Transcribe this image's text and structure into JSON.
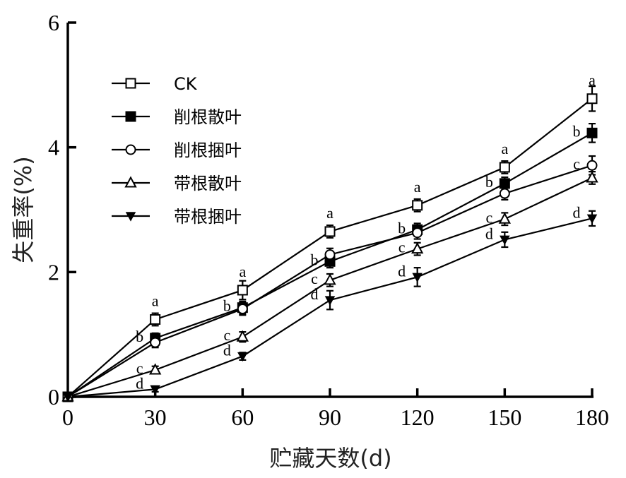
{
  "chart_data": {
    "type": "line",
    "xlabel": "贮藏天数(d)",
    "ylabel": "失重率(%)",
    "xlim": [
      0,
      180
    ],
    "ylim": [
      0,
      6
    ],
    "x": [
      0,
      30,
      60,
      90,
      120,
      150,
      180
    ],
    "x_tick_labels": [
      "0",
      "30",
      "60",
      "90",
      "120",
      "150",
      "180"
    ],
    "y_ticks": [
      0,
      2,
      4,
      6
    ],
    "y_tick_labels": [
      "0",
      "2",
      "4",
      "6"
    ],
    "grid": false,
    "legend_position": "top-left",
    "series": [
      {
        "name": "CK",
        "marker": "square-open",
        "values": [
          0,
          1.24,
          1.71,
          2.65,
          3.07,
          3.68,
          4.78
        ],
        "errors": [
          0,
          0.1,
          0.15,
          0.1,
          0.1,
          0.1,
          0.2
        ],
        "labels": [
          "",
          "a",
          "a",
          "a",
          "a",
          "a",
          "a"
        ]
      },
      {
        "name": "削根散叶",
        "marker": "square-filled",
        "values": [
          0,
          0.94,
          1.43,
          2.17,
          2.68,
          3.42,
          4.23
        ],
        "errors": [
          0,
          0.08,
          0.1,
          0.1,
          0.1,
          0.1,
          0.15
        ],
        "labels": [
          "",
          "b",
          "b",
          "b",
          "b",
          "b",
          "b"
        ]
      },
      {
        "name": "削根捆叶",
        "marker": "circle-open",
        "values": [
          0,
          0.87,
          1.41,
          2.28,
          2.63,
          3.26,
          3.71
        ],
        "errors": [
          0,
          0.08,
          0.1,
          0.1,
          0.1,
          0.1,
          0.15
        ],
        "labels": [
          "",
          "",
          "",
          "",
          "",
          "",
          "c"
        ]
      },
      {
        "name": "带根散叶",
        "marker": "triangle-up-open",
        "values": [
          0,
          0.43,
          0.96,
          1.87,
          2.37,
          2.85,
          3.51
        ],
        "errors": [
          0,
          0.06,
          0.08,
          0.1,
          0.1,
          0.1,
          0.1
        ],
        "labels": [
          "",
          "c",
          "c",
          "c",
          "c",
          "c",
          ""
        ]
      },
      {
        "name": "带根捆叶",
        "marker": "triangle-down-filled",
        "values": [
          0,
          0.12,
          0.65,
          1.55,
          1.92,
          2.52,
          2.86
        ],
        "errors": [
          0,
          0.04,
          0.06,
          0.15,
          0.15,
          0.12,
          0.12
        ],
        "labels": [
          "",
          "d",
          "d",
          "d",
          "d",
          "d",
          "d"
        ]
      }
    ]
  }
}
